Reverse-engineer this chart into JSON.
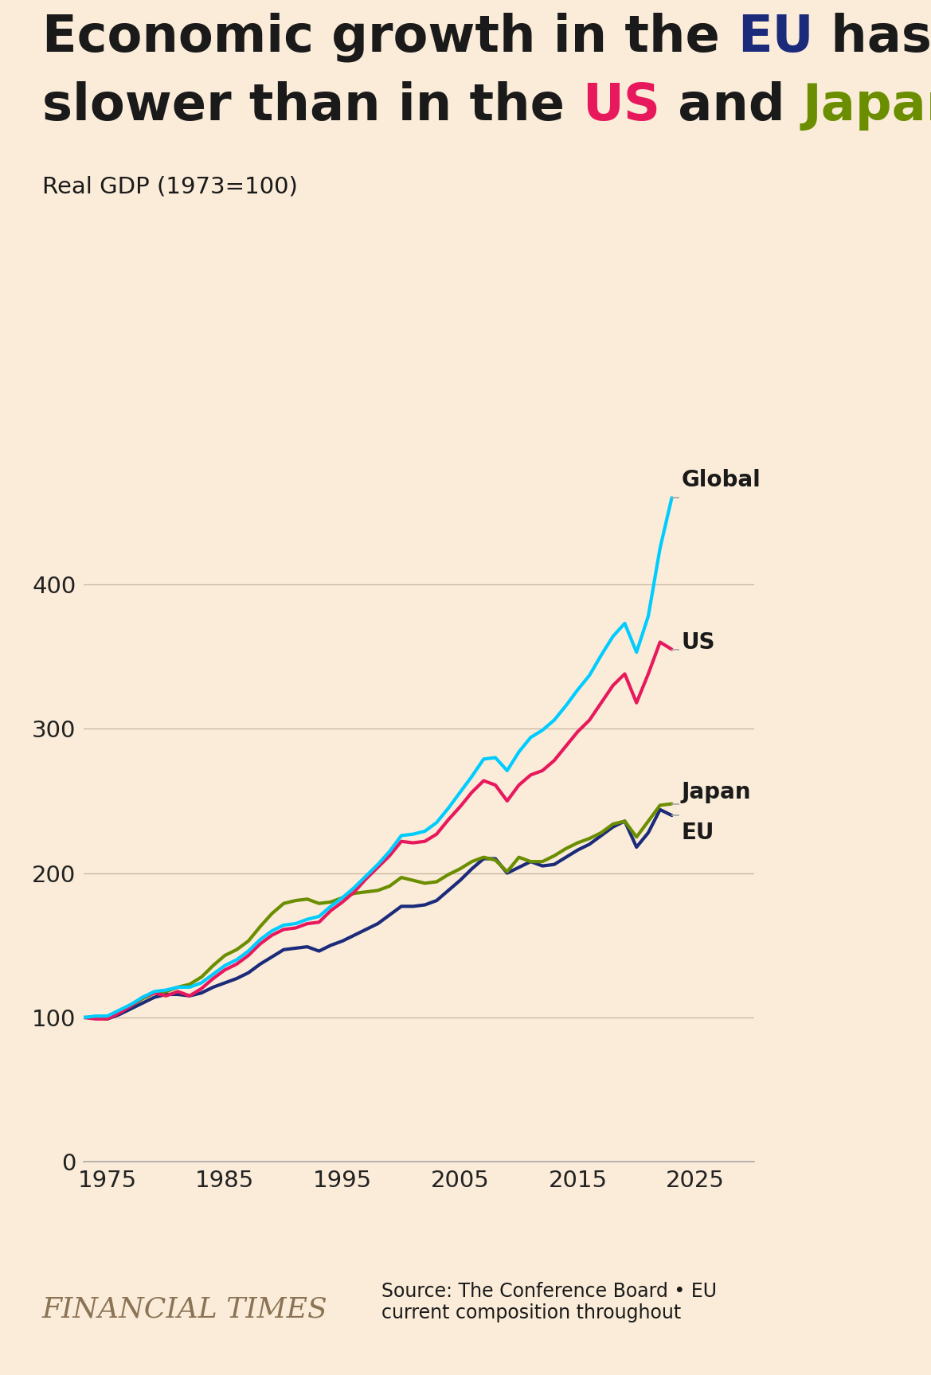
{
  "background_color": "#faecd8",
  "eu_color": "#1b2a7b",
  "us_color": "#e8185d",
  "japan_color": "#6b8e00",
  "global_color": "#00ccff",
  "title_color": "#1a1a1a",
  "ft_color": "#8B7355",
  "subtitle": "Real GDP (1973=100)",
  "source": "Source: The Conference Board • EU\ncurrent composition throughout",
  "ft_label": "FINANCIAL TIMES",
  "years": [
    1973,
    1974,
    1975,
    1976,
    1977,
    1978,
    1979,
    1980,
    1981,
    1982,
    1983,
    1984,
    1985,
    1986,
    1987,
    1988,
    1989,
    1990,
    1991,
    1992,
    1993,
    1994,
    1995,
    1996,
    1997,
    1998,
    1999,
    2000,
    2001,
    2002,
    2003,
    2004,
    2005,
    2006,
    2007,
    2008,
    2009,
    2010,
    2011,
    2012,
    2013,
    2014,
    2015,
    2016,
    2017,
    2018,
    2019,
    2020,
    2021,
    2022,
    2023
  ],
  "global": [
    100,
    101,
    101,
    105,
    109,
    114,
    118,
    119,
    121,
    121,
    124,
    130,
    136,
    140,
    146,
    154,
    160,
    164,
    165,
    168,
    170,
    177,
    183,
    190,
    198,
    206,
    215,
    226,
    227,
    229,
    235,
    245,
    256,
    267,
    279,
    280,
    271,
    284,
    294,
    299,
    306,
    316,
    327,
    337,
    351,
    364,
    373,
    353,
    378,
    425,
    460
  ],
  "us": [
    100,
    99,
    99,
    103,
    108,
    114,
    117,
    115,
    118,
    115,
    120,
    127,
    133,
    137,
    143,
    151,
    157,
    161,
    162,
    165,
    166,
    174,
    180,
    187,
    196,
    204,
    212,
    222,
    221,
    222,
    227,
    237,
    246,
    256,
    264,
    261,
    250,
    261,
    268,
    271,
    278,
    288,
    298,
    306,
    318,
    330,
    338,
    318,
    338,
    360,
    355
  ],
  "japan": [
    100,
    100,
    99,
    104,
    108,
    113,
    117,
    118,
    121,
    123,
    128,
    136,
    143,
    147,
    153,
    163,
    172,
    179,
    181,
    182,
    179,
    180,
    183,
    186,
    187,
    188,
    191,
    197,
    195,
    193,
    194,
    199,
    203,
    208,
    211,
    209,
    201,
    211,
    208,
    208,
    212,
    217,
    221,
    224,
    228,
    234,
    236,
    225,
    236,
    247,
    248
  ],
  "eu": [
    100,
    100,
    99,
    102,
    106,
    110,
    114,
    116,
    116,
    115,
    117,
    121,
    124,
    127,
    131,
    137,
    142,
    147,
    148,
    149,
    146,
    150,
    153,
    157,
    161,
    165,
    171,
    177,
    177,
    178,
    181,
    188,
    195,
    203,
    210,
    210,
    200,
    204,
    208,
    205,
    206,
    211,
    216,
    220,
    226,
    232,
    236,
    218,
    228,
    244,
    240
  ],
  "xlim_min": 1973,
  "xlim_max": 2030,
  "ylim_min": 0,
  "ylim_max": 500,
  "yticks": [
    0,
    100,
    200,
    300,
    400
  ],
  "xticks": [
    1975,
    1985,
    1995,
    2005,
    2015,
    2025
  ],
  "linewidth": 3.0
}
